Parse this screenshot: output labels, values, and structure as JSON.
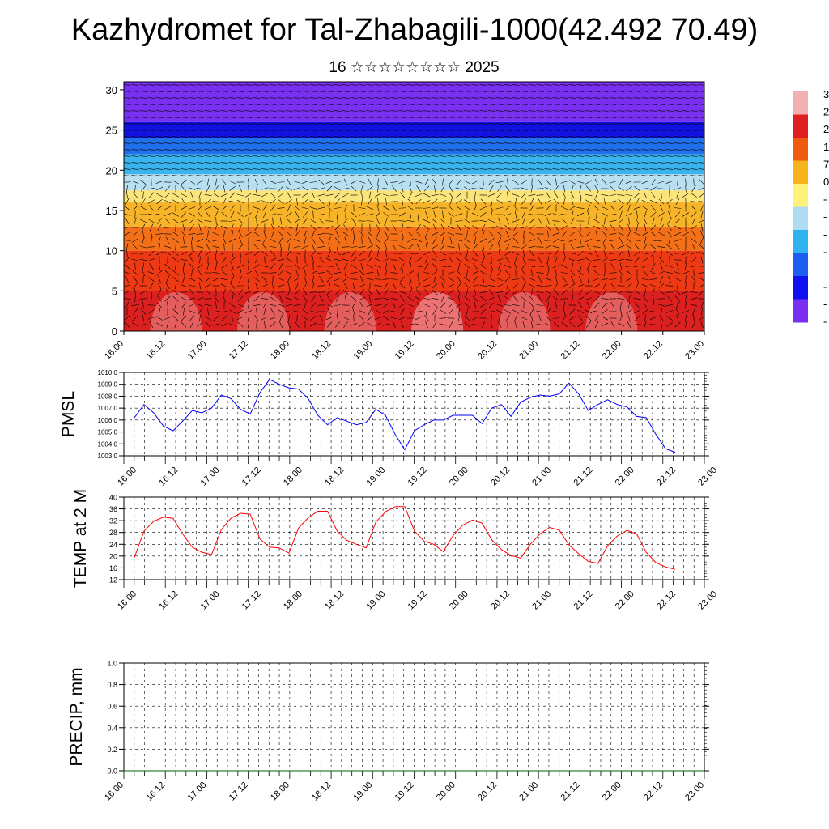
{
  "title": "Kazhydromet for Tal-Zhabagili-1000(42.492 70.49)",
  "subtitle": "16 ☆☆☆☆☆☆☆☆ 2025",
  "time_labels": [
    "16.00",
    "16.12",
    "17.00",
    "17.12",
    "18.00",
    "18.12",
    "19.00",
    "19.12",
    "20.00",
    "20.12",
    "21.00",
    "21.12",
    "22.00",
    "22.12",
    "23.00"
  ],
  "colorbar": {
    "labels": [
      "3",
      "2",
      "2",
      "1",
      "7",
      "0",
      "-",
      "-",
      "-",
      "-",
      "-",
      "-",
      "-",
      "-"
    ],
    "colors_top_to_bottom": [
      "#f2b0b0",
      "#e02020",
      "#ee5a10",
      "#f7b31b",
      "#fff27a",
      "#aedcf0",
      "#2fb2ef",
      "#1b5ef0",
      "#1010ee",
      "#7a2ff0"
    ]
  },
  "chart_data": [
    {
      "type": "heatmap",
      "title": "16 ☆☆☆☆☆☆☆☆ 2025",
      "ylim": [
        0,
        31
      ],
      "yticks": [
        0,
        5,
        10,
        15,
        20,
        25,
        30
      ],
      "x_tick_labels": [
        "16.00",
        "16.12",
        "17.00",
        "17.12",
        "18.00",
        "18.12",
        "19.00",
        "19.12",
        "20.00",
        "20.12",
        "21.00",
        "21.12",
        "22.00",
        "22.12",
        "23.00"
      ],
      "color_bands_by_level": [
        {
          "from": 0,
          "to": 5,
          "color": "#dc2020"
        },
        {
          "from": 5,
          "to": 10,
          "color": "#ee3a14"
        },
        {
          "from": 10,
          "to": 13,
          "color": "#f47018"
        },
        {
          "from": 13,
          "to": 16,
          "color": "#f8b428"
        },
        {
          "from": 16,
          "to": 17.5,
          "color": "#fbe47a"
        },
        {
          "from": 17.5,
          "to": 19.5,
          "color": "#b8e0f0"
        },
        {
          "from": 19.5,
          "to": 22,
          "color": "#3ab4ee"
        },
        {
          "from": 22,
          "to": 24,
          "color": "#2070ee"
        },
        {
          "from": 24,
          "to": 26,
          "color": "#1212e0"
        },
        {
          "from": 26,
          "to": 31,
          "color": "#7a30f0"
        }
      ],
      "overlay": "wind barbs",
      "grid": false
    },
    {
      "type": "line",
      "ylabel": "PMSL",
      "ylim": [
        1003.0,
        1010.0
      ],
      "yticks": [
        "1003.0",
        "1004.0",
        "1005.0",
        "1006.0",
        "1007.0",
        "1008.0",
        "1009.0",
        "1010.0"
      ],
      "x_tick_labels": [
        "16.00",
        "16.12",
        "17.00",
        "17.12",
        "18.00",
        "18.12",
        "19.00",
        "19.12",
        "20.00",
        "20.12",
        "21.00",
        "21.12",
        "22.00",
        "22.12",
        "23.00"
      ],
      "grid": true,
      "series": [
        {
          "color": "#0000ff",
          "values": [
            1006.2,
            1007.3,
            1006.6,
            1005.5,
            1005.1,
            1005.9,
            1006.8,
            1006.6,
            1007.0,
            1008.1,
            1007.8,
            1006.9,
            1006.5,
            1008.3,
            1009.4,
            1009.0,
            1008.7,
            1008.6,
            1007.8,
            1006.4,
            1005.6,
            1006.2,
            1005.9,
            1005.6,
            1005.8,
            1006.9,
            1006.4,
            1004.8,
            1003.5,
            1005.1,
            1005.6,
            1006.0,
            1006.0,
            1006.4,
            1006.4,
            1006.4,
            1005.7,
            1007.0,
            1007.3,
            1006.3,
            1007.5,
            1007.9,
            1008.1,
            1008.0,
            1008.2,
            1009.1,
            1008.2,
            1006.8,
            1007.3,
            1007.7,
            1007.3,
            1007.1,
            1006.3,
            1006.2,
            1004.8,
            1003.6,
            1003.3
          ]
        }
      ]
    },
    {
      "type": "line",
      "ylabel": "TEMP at 2 M",
      "ylim": [
        12,
        40
      ],
      "yticks": [
        "12",
        "16",
        "20",
        "24",
        "28",
        "32",
        "36",
        "40"
      ],
      "x_tick_labels": [
        "16.00",
        "16.12",
        "17.00",
        "17.12",
        "18.00",
        "18.12",
        "19.00",
        "19.12",
        "20.00",
        "20.12",
        "21.00",
        "21.12",
        "22.00",
        "22.12",
        "23.00"
      ],
      "grid": true,
      "series": [
        {
          "color": "#ff0000",
          "values": [
            19.5,
            28.5,
            31.8,
            33.2,
            32.8,
            27.5,
            23.0,
            21.3,
            20.5,
            29.0,
            32.8,
            34.5,
            34.2,
            25.8,
            23.0,
            22.8,
            21.0,
            29.5,
            33.0,
            35.2,
            35.2,
            28.5,
            25.3,
            24.0,
            22.8,
            31.5,
            35.0,
            36.8,
            36.8,
            28.5,
            25.0,
            24.0,
            21.5,
            27.0,
            30.5,
            32.2,
            31.2,
            25.5,
            22.2,
            20.2,
            19.3,
            24.0,
            27.5,
            29.7,
            28.8,
            23.8,
            20.8,
            18.2,
            17.5,
            23.5,
            26.8,
            28.7,
            27.5,
            21.3,
            17.8,
            16.3,
            15.5
          ]
        }
      ]
    },
    {
      "type": "line",
      "ylabel": "PRECIP, mm",
      "ylim": [
        0.0,
        1.0
      ],
      "yticks": [
        "0.0",
        "0.2",
        "0.4",
        "0.6",
        "0.8",
        "1.0"
      ],
      "x_tick_labels": [
        "16.00",
        "16.12",
        "17.00",
        "17.12",
        "18.00",
        "18.12",
        "19.00",
        "19.12",
        "20.00",
        "20.12",
        "21.00",
        "21.12",
        "22.00",
        "22.12",
        "23.00"
      ],
      "grid": true,
      "series": [
        {
          "color": "#006400",
          "values": [
            0,
            0,
            0,
            0,
            0,
            0,
            0,
            0,
            0,
            0,
            0,
            0,
            0,
            0,
            0,
            0,
            0,
            0,
            0,
            0,
            0,
            0,
            0,
            0,
            0,
            0,
            0,
            0,
            0,
            0,
            0,
            0,
            0,
            0,
            0,
            0,
            0,
            0,
            0,
            0,
            0,
            0,
            0,
            0,
            0,
            0,
            0,
            0,
            0,
            0,
            0,
            0,
            0,
            0,
            0,
            0,
            0
          ]
        }
      ]
    }
  ]
}
